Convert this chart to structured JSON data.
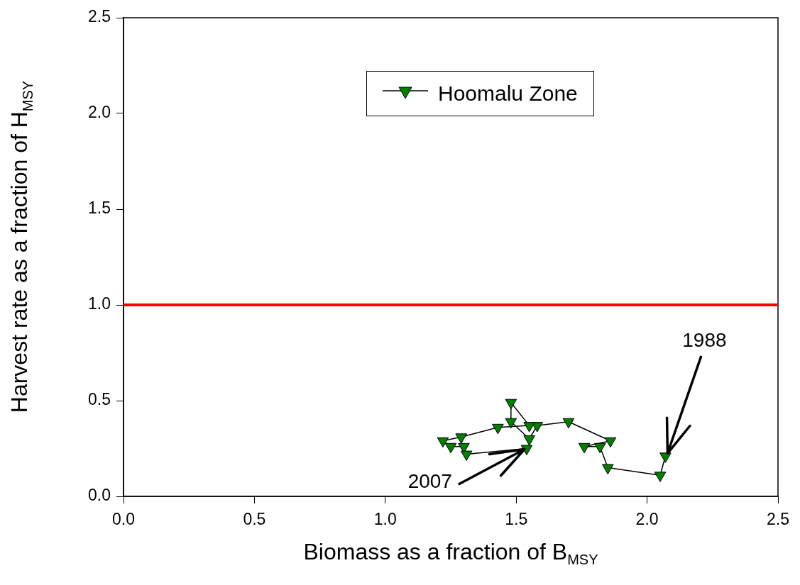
{
  "chart_data": {
    "type": "line",
    "xlabel": "Biomass as a fraction of B$_{MSY}$",
    "ylabel": "Harvest rate as a fraction of H$_{MSY}$",
    "series": [
      {
        "name": "Hoomalu Zone",
        "color": "#008000",
        "x": [
          2.07,
          2.05,
          1.85,
          1.82,
          1.76,
          1.86,
          1.7,
          1.58,
          1.55,
          1.48,
          1.48,
          1.55,
          1.43,
          1.29,
          1.22,
          1.25,
          1.3,
          1.31,
          1.54
        ],
        "values": [
          0.21,
          0.11,
          0.15,
          0.26,
          0.26,
          0.29,
          0.39,
          0.37,
          0.3,
          0.39,
          0.49,
          0.37,
          0.36,
          0.31,
          0.29,
          0.26,
          0.26,
          0.22,
          0.25
        ]
      }
    ],
    "marker": "triangle",
    "line_style": "solid",
    "legend": "top right",
    "grid": false,
    "xlim": [
      0,
      2.5
    ],
    "ylim": [
      0,
      2.5
    ],
    "xticks": [
      {
        "value": 0,
        "label": "0.0"
      },
      {
        "value": 0.5,
        "label": "0.5"
      },
      {
        "value": 1,
        "label": "1.0"
      },
      {
        "value": 1.5,
        "label": "1.5"
      },
      {
        "value": 2,
        "label": "2.0"
      },
      {
        "value": 2.5,
        "label": "2.5"
      }
    ],
    "yticks": [
      {
        "value": 0,
        "label": "0.0"
      },
      {
        "value": 0.5,
        "label": "0.5"
      },
      {
        "value": 1,
        "label": "1.0"
      },
      {
        "value": 1.5,
        "label": "1.5"
      },
      {
        "value": 2,
        "label": "2.0"
      },
      {
        "value": 2.5,
        "label": "2.5"
      }
    ],
    "ref_lines": [
      {
        "axis": "y",
        "value": 1,
        "color": "#ff0000",
        "line_style": "solid"
      }
    ],
    "annotations": [
      {
        "text": "1988",
        "x": 2.07,
        "y": 0.21
      },
      {
        "text": "2007",
        "x": 1.54,
        "y": 0.25
      }
    ]
  }
}
